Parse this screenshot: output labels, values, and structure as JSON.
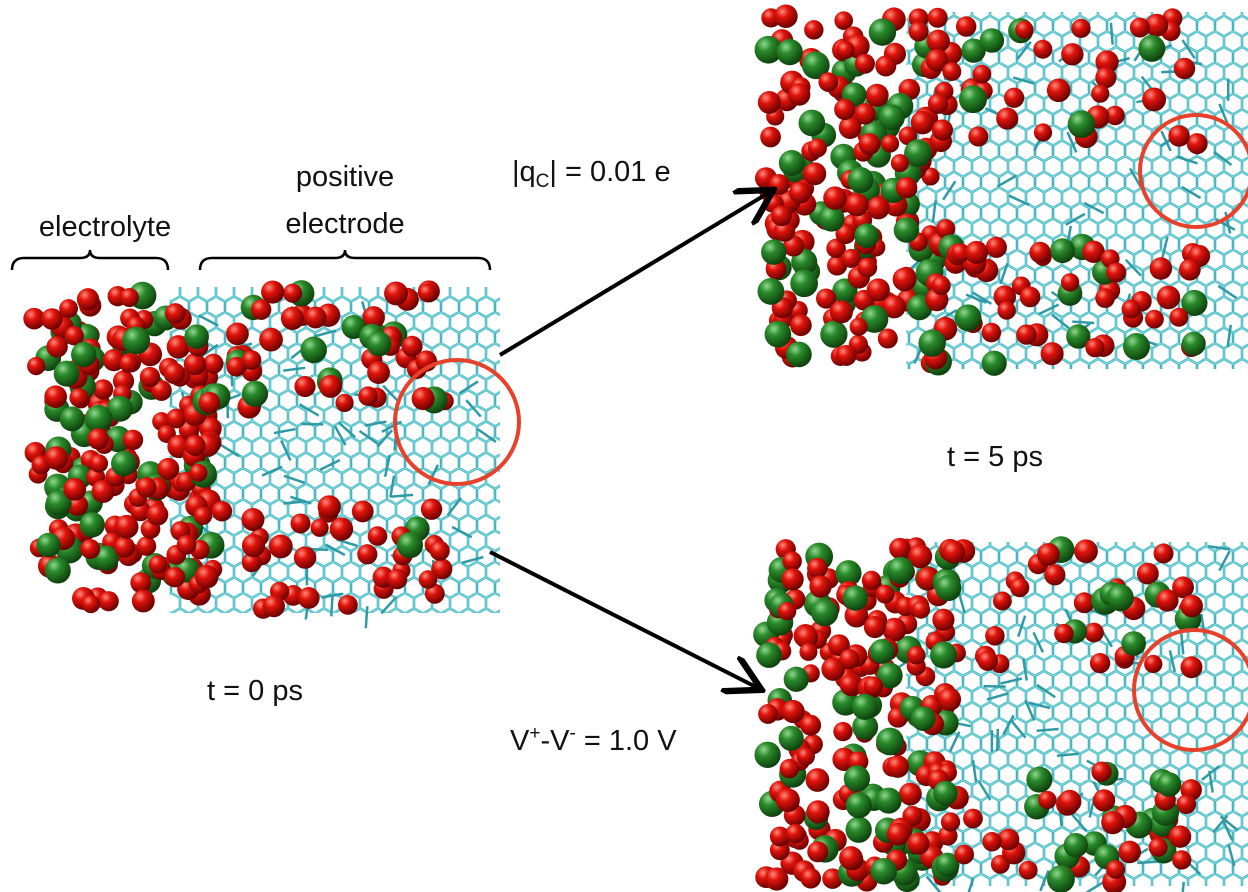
{
  "labels": {
    "electrolyte": "electrolyte",
    "positive_electrode": [
      "positive",
      "electrode"
    ],
    "t0": "t = 0 ps",
    "t5": "t = 5 ps",
    "charge": [
      "|q",
      "C",
      "| = 0.01 e"
    ],
    "voltage": [
      "V",
      "+",
      "-V",
      "-",
      " = 1.0 V"
    ]
  }
}
